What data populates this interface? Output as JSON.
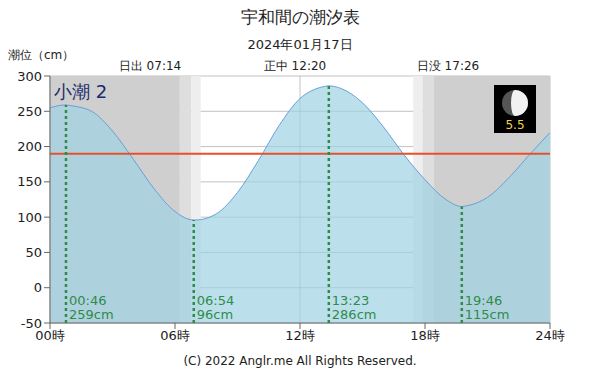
{
  "chart_data": {
    "type": "area",
    "title": "宇和間の潮汐表",
    "subtitle": "2024年01月17日",
    "y_label": "潮位（cm）",
    "tide_name": "小潮 2",
    "moon_age": 5.5,
    "sun": [
      {
        "label": "日出",
        "time": "07:14"
      },
      {
        "label": "正中",
        "time": "12:20"
      },
      {
        "label": "日没",
        "time": "17:26"
      }
    ],
    "x": [
      0,
      0.767,
      1,
      2,
      3,
      4,
      5,
      6,
      6.9,
      7,
      8,
      9,
      10,
      11,
      12,
      13,
      13.383,
      14,
      15,
      16,
      17,
      18,
      19,
      19.767,
      20,
      21,
      22,
      23,
      24
    ],
    "values": [
      255,
      259,
      258,
      250,
      222,
      182,
      140,
      108,
      96,
      96,
      105,
      135,
      180,
      230,
      268,
      284,
      286,
      282,
      262,
      228,
      188,
      153,
      125,
      115,
      116,
      128,
      155,
      188,
      220
    ],
    "color": "#6a9fd8",
    "extremes": [
      {
        "time": "00:46",
        "value": 259,
        "label": "259cm"
      },
      {
        "time": "06:54",
        "value": 96,
        "label": "96cm"
      },
      {
        "time": "13:23",
        "value": 286,
        "label": "286cm"
      },
      {
        "time": "19:46",
        "value": 115,
        "label": "115cm"
      }
    ],
    "reference_line": 190,
    "xlim": [
      0,
      24
    ],
    "xticks": [
      {
        "value": 0,
        "label": "00時"
      },
      {
        "value": 6,
        "label": "06時"
      },
      {
        "value": 12,
        "label": "12時"
      },
      {
        "value": 18,
        "label": "18時"
      },
      {
        "value": 24,
        "label": "24時"
      }
    ],
    "ylim": [
      -50,
      300
    ],
    "yticks": [
      -50,
      0,
      50,
      100,
      150,
      200,
      250,
      300
    ],
    "grid": true,
    "footer": "(C) 2022 Anglr.me All Rights Reserved."
  }
}
